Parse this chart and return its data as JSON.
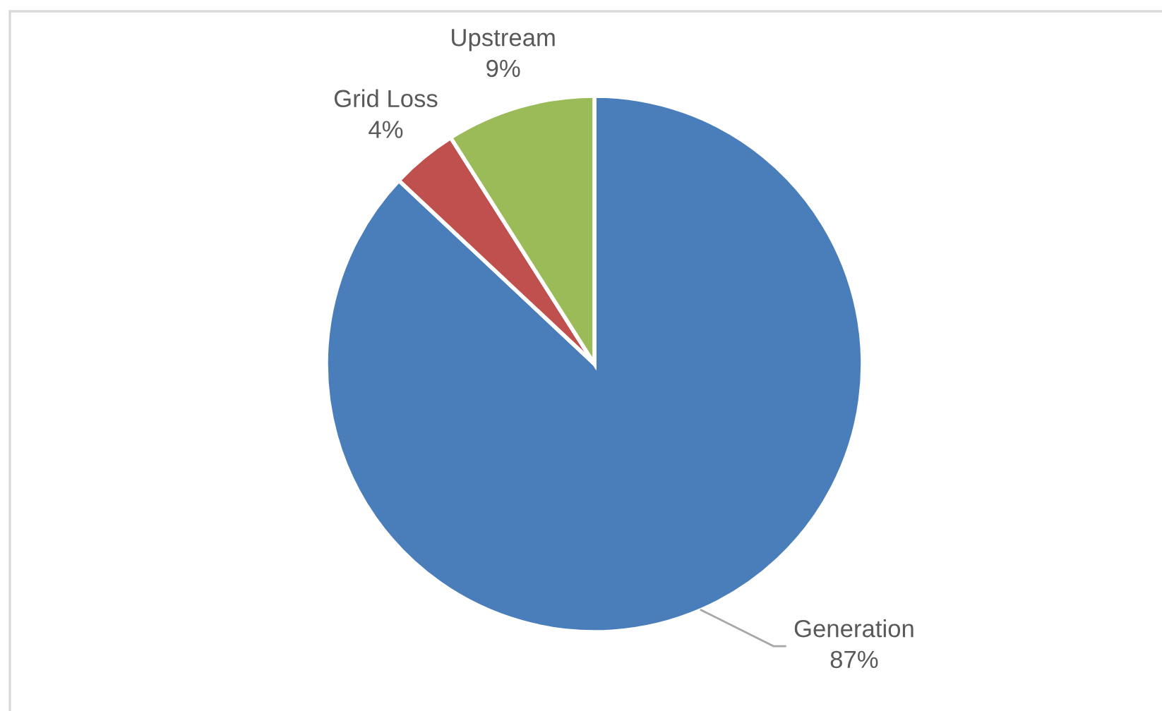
{
  "chart_data": {
    "type": "pie",
    "categories": [
      "Generation",
      "Grid Loss",
      "Upstream"
    ],
    "values": [
      87,
      4,
      9
    ],
    "colors": [
      "#4a7ebb",
      "#c0504d",
      "#9bbb59"
    ],
    "value_labels": [
      "87%",
      "4%",
      "9%"
    ]
  }
}
